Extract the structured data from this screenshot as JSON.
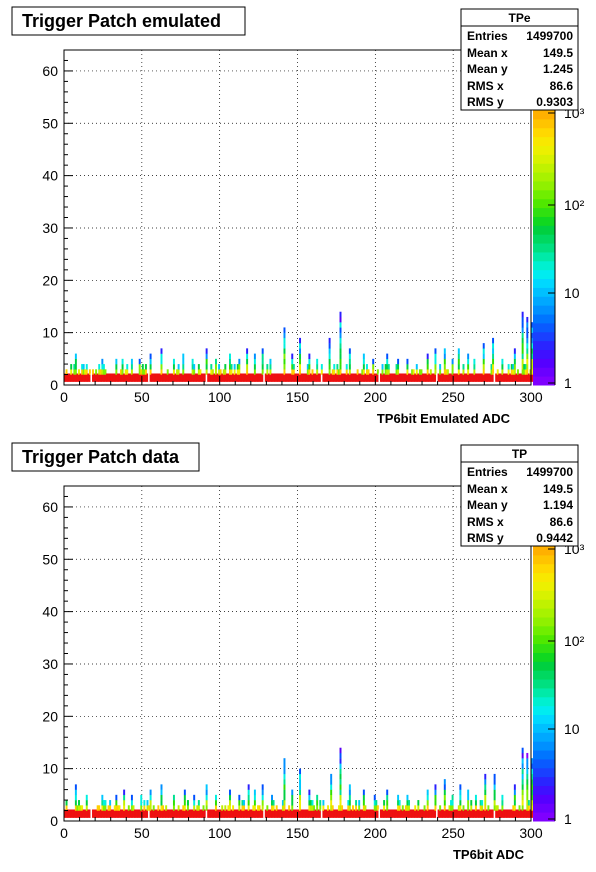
{
  "chart_data": [
    {
      "type": "heatmap",
      "title": "Trigger Patch emulated",
      "xlabel": "TP6bit Emulated ADC",
      "ylabel": "",
      "xlim": [
        0,
        300
      ],
      "ylim": [
        0,
        64
      ],
      "x_ticks": [
        "0",
        "50",
        "100",
        "150",
        "200",
        "250",
        "300"
      ],
      "y_ticks": [
        "0",
        "10",
        "20",
        "30",
        "40",
        "50",
        "60"
      ],
      "grid": true,
      "z_scale": "log",
      "z_ticks": [
        "1",
        "10",
        "10²",
        "10³"
      ],
      "stats": {
        "name": "TPe",
        "rows": [
          {
            "label": "Entries",
            "value": "1499700"
          },
          {
            "label": "Mean x",
            "value": "149.5"
          },
          {
            "label": "Mean y",
            "value": "1.245"
          },
          {
            "label": "RMS x",
            "value": "86.6"
          },
          {
            "label": "RMS y",
            "value": "0.9303"
          }
        ]
      },
      "peaks": [
        [
          7,
          6
        ],
        [
          14,
          4
        ],
        [
          24,
          5
        ],
        [
          33,
          5
        ],
        [
          37,
          5
        ],
        [
          43,
          5
        ],
        [
          48,
          5
        ],
        [
          55,
          6
        ],
        [
          62,
          7
        ],
        [
          70,
          5
        ],
        [
          76,
          6
        ],
        [
          82,
          5
        ],
        [
          91,
          7
        ],
        [
          97,
          5
        ],
        [
          106,
          6
        ],
        [
          112,
          5
        ],
        [
          117,
          7
        ],
        [
          122,
          6
        ],
        [
          127,
          7
        ],
        [
          132,
          5
        ],
        [
          141,
          11
        ],
        [
          146,
          6
        ],
        [
          151,
          9
        ],
        [
          157,
          6
        ],
        [
          162,
          5
        ],
        [
          170,
          9
        ],
        [
          177,
          14
        ],
        [
          183,
          7
        ],
        [
          192,
          6
        ],
        [
          198,
          5
        ],
        [
          207,
          6
        ],
        [
          214,
          5
        ],
        [
          220,
          5
        ],
        [
          226,
          4
        ],
        [
          233,
          6
        ],
        [
          238,
          7
        ],
        [
          244,
          7
        ],
        [
          249,
          5
        ],
        [
          253,
          7
        ],
        [
          259,
          6
        ],
        [
          263,
          5
        ],
        [
          269,
          8
        ],
        [
          275,
          9
        ],
        [
          281,
          5
        ],
        [
          289,
          7
        ],
        [
          294,
          14
        ],
        [
          297,
          13
        ],
        [
          300,
          12
        ]
      ]
    },
    {
      "type": "heatmap",
      "title": "Trigger Patch data",
      "xlabel": "TP6bit ADC",
      "ylabel": "",
      "xlim": [
        0,
        300
      ],
      "ylim": [
        0,
        64
      ],
      "x_ticks": [
        "0",
        "50",
        "100",
        "150",
        "200",
        "250",
        "300"
      ],
      "y_ticks": [
        "0",
        "10",
        "20",
        "30",
        "40",
        "50",
        "60"
      ],
      "grid": true,
      "z_scale": "log",
      "z_ticks": [
        "1",
        "10",
        "10²",
        "10³"
      ],
      "stats": {
        "name": "TP",
        "rows": [
          {
            "label": "Entries",
            "value": "1499700"
          },
          {
            "label": "Mean x",
            "value": "149.5"
          },
          {
            "label": "Mean y",
            "value": "1.194"
          },
          {
            "label": "RMS x",
            "value": "86.6"
          },
          {
            "label": "RMS y",
            "value": "0.9442"
          }
        ]
      },
      "peaks": [
        [
          7,
          7
        ],
        [
          14,
          5
        ],
        [
          24,
          5
        ],
        [
          33,
          5
        ],
        [
          38,
          6
        ],
        [
          43,
          5
        ],
        [
          49,
          5
        ],
        [
          55,
          6
        ],
        [
          62,
          7
        ],
        [
          70,
          5
        ],
        [
          77,
          6
        ],
        [
          83,
          5
        ],
        [
          91,
          7
        ],
        [
          97,
          5
        ],
        [
          106,
          6
        ],
        [
          112,
          5
        ],
        [
          118,
          7
        ],
        [
          122,
          6
        ],
        [
          127,
          7
        ],
        [
          133,
          5
        ],
        [
          141,
          12
        ],
        [
          146,
          6
        ],
        [
          151,
          10
        ],
        [
          157,
          6
        ],
        [
          162,
          5
        ],
        [
          171,
          9
        ],
        [
          177,
          14
        ],
        [
          183,
          7
        ],
        [
          192,
          6
        ],
        [
          199,
          5
        ],
        [
          207,
          6
        ],
        [
          214,
          5
        ],
        [
          220,
          5
        ],
        [
          227,
          4
        ],
        [
          233,
          6
        ],
        [
          238,
          7
        ],
        [
          244,
          8
        ],
        [
          249,
          5
        ],
        [
          254,
          7
        ],
        [
          259,
          6
        ],
        [
          264,
          5
        ],
        [
          270,
          9
        ],
        [
          276,
          9
        ],
        [
          281,
          5
        ],
        [
          289,
          7
        ],
        [
          294,
          14
        ],
        [
          297,
          13
        ],
        [
          300,
          12
        ]
      ]
    }
  ]
}
